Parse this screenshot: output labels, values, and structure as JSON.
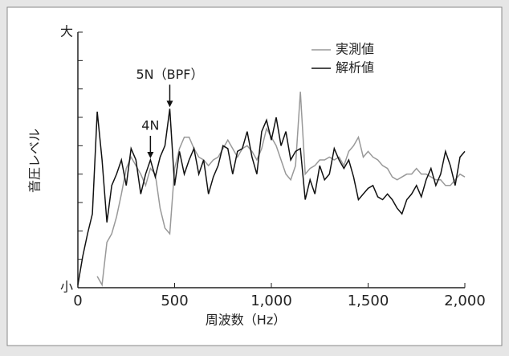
{
  "chart_data": {
    "type": "line",
    "xlabel": "周波数（Hz）",
    "ylabel": "音圧レベル",
    "x": [
      0,
      25,
      50,
      75,
      100,
      125,
      150,
      175,
      200,
      225,
      250,
      275,
      300,
      325,
      350,
      375,
      400,
      425,
      450,
      475,
      500,
      525,
      550,
      575,
      600,
      625,
      650,
      675,
      700,
      725,
      750,
      775,
      800,
      825,
      850,
      875,
      900,
      925,
      950,
      975,
      1000,
      1025,
      1050,
      1075,
      1100,
      1125,
      1150,
      1175,
      1200,
      1225,
      1250,
      1275,
      1300,
      1325,
      1350,
      1375,
      1400,
      1425,
      1450,
      1475,
      1500,
      1525,
      1550,
      1575,
      1600,
      1625,
      1650,
      1675,
      1700,
      1725,
      1750,
      1775,
      1800,
      1825,
      1850,
      1875,
      1900,
      1925,
      1950,
      1975,
      2000
    ],
    "series": [
      {
        "name": "実測値",
        "color": "#999999",
        "values": [
          null,
          null,
          null,
          null,
          0.4,
          0.1,
          1.6,
          1.9,
          2.5,
          3.3,
          4.2,
          4.6,
          4.3,
          4.0,
          3.6,
          4.2,
          4.0,
          2.8,
          2.1,
          1.9,
          4.2,
          4.9,
          5.3,
          5.3,
          4.9,
          4.6,
          4.5,
          4.3,
          4.5,
          4.6,
          4.9,
          5.2,
          4.9,
          4.6,
          4.9,
          5.0,
          4.8,
          4.5,
          4.9,
          5.6,
          5.3,
          5.0,
          4.5,
          4.0,
          3.8,
          4.3,
          6.9,
          4.0,
          4.2,
          4.3,
          4.5,
          4.5,
          4.6,
          4.5,
          4.6,
          4.3,
          4.8,
          5.0,
          5.3,
          4.6,
          4.8,
          4.6,
          4.5,
          4.3,
          4.2,
          3.9,
          3.8,
          3.9,
          4.0,
          4.0,
          4.2,
          4.0,
          4.0,
          3.9,
          3.8,
          3.8,
          3.6,
          3.6,
          3.8,
          4.0,
          3.9
        ]
      },
      {
        "name": "解析値",
        "color": "#111111",
        "values": [
          0.1,
          1.1,
          1.9,
          2.6,
          6.2,
          4.5,
          2.3,
          3.6,
          4.0,
          4.5,
          3.6,
          4.9,
          4.5,
          3.3,
          4.0,
          4.5,
          3.9,
          4.6,
          5.0,
          6.3,
          3.6,
          4.8,
          4.0,
          4.5,
          4.9,
          4.0,
          4.5,
          3.3,
          3.9,
          4.3,
          5.0,
          4.9,
          4.0,
          4.8,
          4.9,
          5.5,
          4.6,
          4.0,
          5.5,
          5.9,
          5.2,
          6.0,
          5.0,
          5.5,
          4.5,
          4.8,
          4.9,
          3.1,
          3.8,
          3.3,
          4.3,
          3.8,
          4.0,
          4.9,
          4.5,
          4.2,
          4.5,
          3.9,
          3.1,
          3.3,
          3.5,
          3.6,
          3.2,
          3.1,
          3.3,
          3.1,
          2.8,
          2.6,
          3.1,
          3.3,
          3.6,
          3.2,
          3.8,
          4.2,
          3.6,
          4.0,
          4.8,
          4.3,
          3.6,
          4.6,
          4.8
        ]
      }
    ],
    "xlim": [
      0,
      2000
    ],
    "xticks": [
      0,
      500,
      {
        "value": 1000,
        "label": "1,000"
      },
      {
        "value": 1500,
        "label": "1,500"
      },
      {
        "value": 2000,
        "label": "2,000"
      }
    ],
    "ylim": [
      0,
      9
    ],
    "yticks": [
      {
        "value": 0,
        "label": "小"
      },
      {
        "value": 9,
        "label": "大"
      }
    ],
    "yminor_ticks": [
      1,
      2,
      3,
      4,
      5,
      6,
      7,
      8
    ],
    "annotations": [
      {
        "text": "5N（BPF）",
        "x": 475,
        "series": 1
      },
      {
        "text": "4N",
        "x": 375,
        "series": 1
      }
    ],
    "legend": "top-right"
  }
}
